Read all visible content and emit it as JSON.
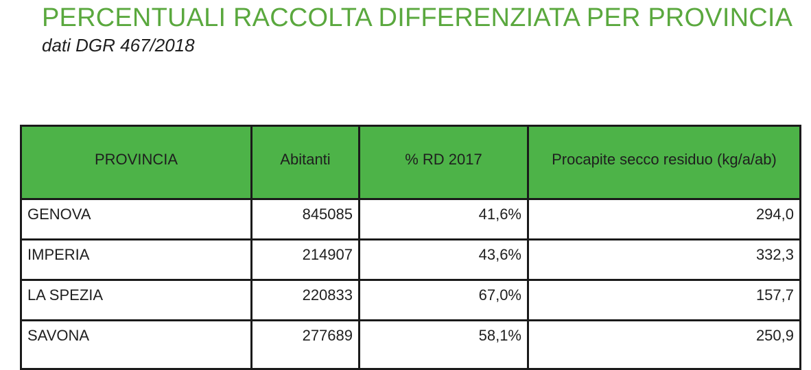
{
  "title": "PERCENTUALI RACCOLTA DIFFERENZIATA PER PROVINCIA",
  "subtitle": "dati DGR 467/2018",
  "colors": {
    "title_green": "#5aa83e",
    "header_green": "#4db348",
    "border": "#1a1a1a"
  },
  "table": {
    "headers": [
      "PROVINCIA",
      "Abitanti",
      "% RD 2017",
      "Procapite secco residuo (kg/a/ab)"
    ],
    "rows": [
      [
        "GENOVA",
        "845085",
        "41,6%",
        "294,0"
      ],
      [
        "IMPERIA",
        "214907",
        "43,6%",
        "332,3"
      ],
      [
        "LA SPEZIA",
        "220833",
        "67,0%",
        "157,7"
      ],
      [
        "SAVONA",
        "277689",
        "58,1%",
        "250,9"
      ]
    ]
  }
}
